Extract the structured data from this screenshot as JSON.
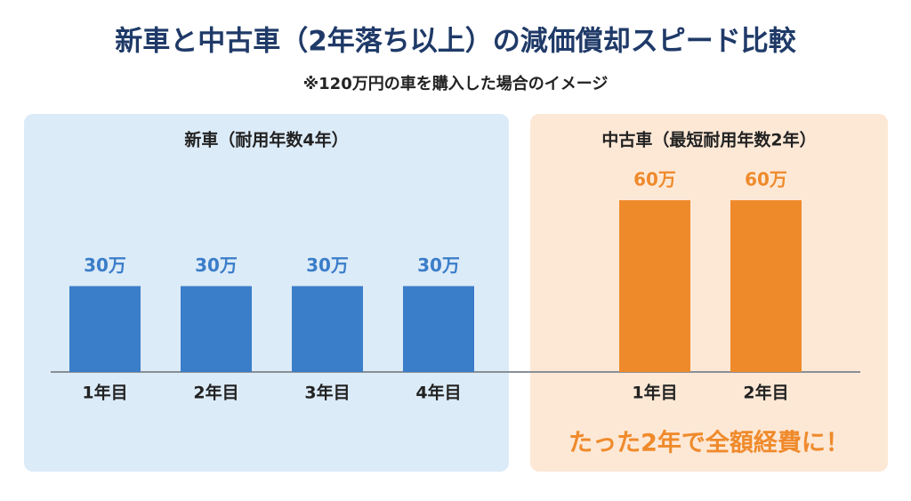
{
  "title": "新車と中古車（2年落ち以上）の減価償却スピード比較",
  "subtitle": "※120万円の車を購入した場合のイメージ",
  "chart_data": [
    {
      "type": "bar",
      "title": "新車（耐用年数4年）",
      "categories": [
        "1年目",
        "2年目",
        "3年目",
        "4年目"
      ],
      "values": [
        30,
        30,
        30,
        30
      ],
      "value_labels": [
        "30万",
        "30万",
        "30万",
        "30万"
      ],
      "color": "#3a7dc9"
    },
    {
      "type": "bar",
      "title": "中古車（最短耐用年数2年）",
      "categories": [
        "1年目",
        "2年目"
      ],
      "values": [
        60,
        60
      ],
      "value_labels": [
        "60万",
        "60万"
      ],
      "color": "#ef8a2b",
      "annotation": "たった2年で全額経費に！"
    }
  ]
}
